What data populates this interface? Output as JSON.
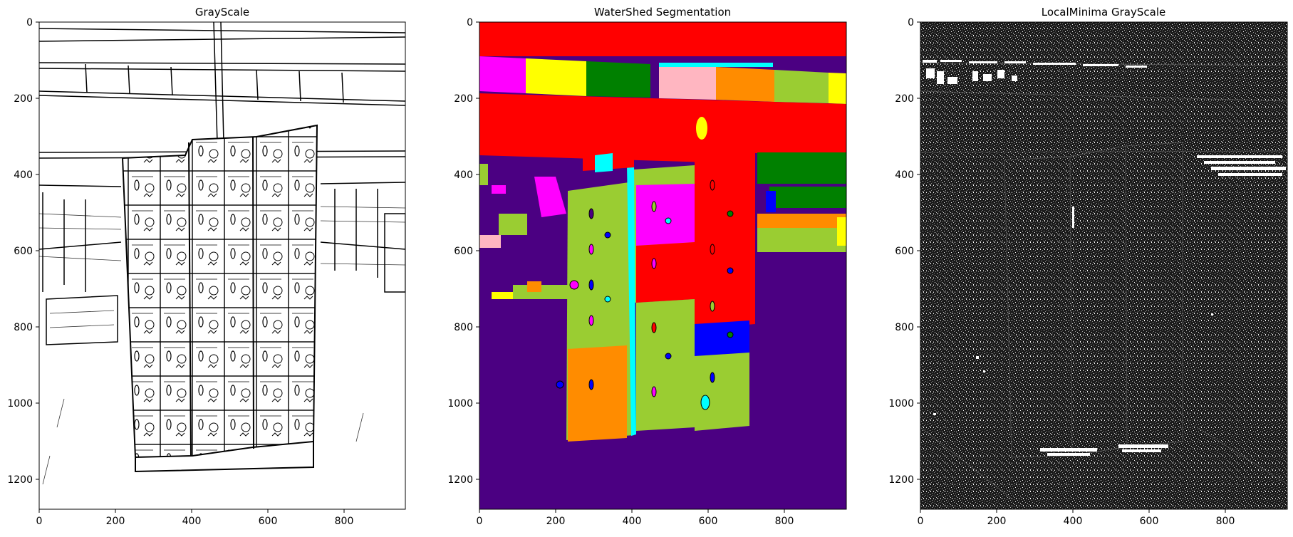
{
  "figure": {
    "panels": [
      {
        "title": "GrayScale",
        "kind": "edge-map",
        "xticks": [
          "0",
          "200",
          "400",
          "600",
          "800"
        ],
        "yticks": [
          "0",
          "200",
          "400",
          "600",
          "800",
          "1000",
          "1200"
        ],
        "colors": {
          "background": "#ffffff",
          "foreground": "#000000"
        }
      },
      {
        "title": "WaterShed Segmentation",
        "kind": "segmentation",
        "xticks": [
          "0",
          "200",
          "400",
          "600",
          "800"
        ],
        "yticks": [
          "0",
          "200",
          "400",
          "600",
          "800",
          "1000",
          "1200"
        ],
        "colors": {
          "background": "#4b0082",
          "red": "#ff0000",
          "green": "#008000",
          "yellowgreen": "#9acd32",
          "magenta": "#ff00ff",
          "yellow": "#ffff00",
          "orange": "#ff8c00",
          "pink": "#ffb6c1",
          "cyan": "#00ffff",
          "blue": "#0000ff"
        }
      },
      {
        "title": "LocalMinima GrayScale",
        "kind": "noise-map",
        "xticks": [
          "0",
          "200",
          "400",
          "600",
          "800"
        ],
        "yticks": [
          "0",
          "200",
          "400",
          "600",
          "800",
          "1000",
          "1200"
        ],
        "colors": {
          "background": "#1a1a1a",
          "foreground": "#ffffff"
        }
      }
    ]
  }
}
